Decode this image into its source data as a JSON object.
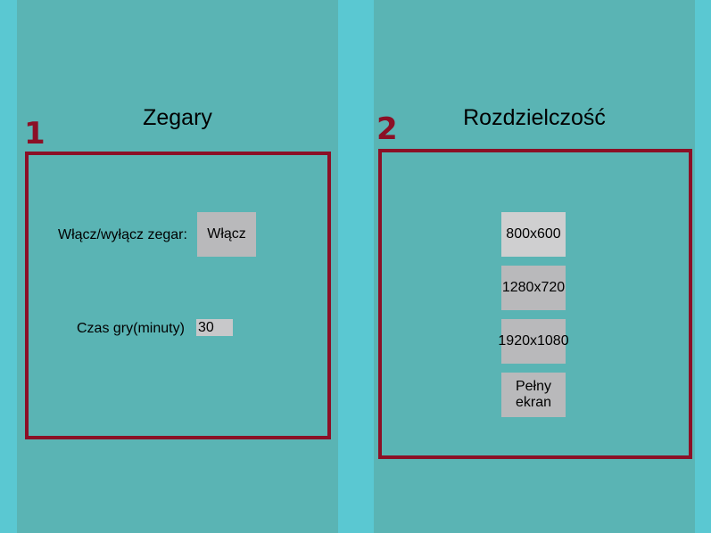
{
  "clocks_panel": {
    "title": "Zegary",
    "marker": "1",
    "toggle_label": "Włącz/wyłącz zegar:",
    "toggle_button": "Włącz",
    "game_time_label": "Czas gry(minuty)",
    "game_time_value": "30"
  },
  "resolution_panel": {
    "title": "Rozdzielczość",
    "marker": "2",
    "options": [
      "800x600",
      "1280x720",
      "1920x1080",
      "Pełny ekran"
    ]
  },
  "colors": {
    "background": "#5ac8d2",
    "panel": "#5ab4b4",
    "highlight_frame": "#8b1026",
    "button": "#b9b9bb"
  }
}
